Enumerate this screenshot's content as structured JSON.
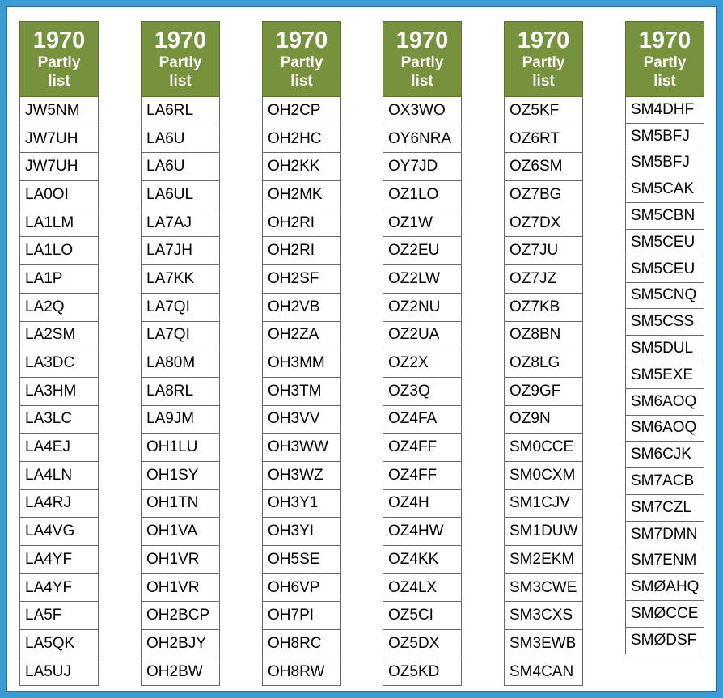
{
  "columns": [
    {
      "year": "1970",
      "sub1": "Partly",
      "sub2": "list",
      "items": [
        "JW5NM",
        "JW7UH",
        "JW7UH",
        "LA0OI",
        "LA1LM",
        "LA1LO",
        "LA1P",
        "LA2Q",
        "LA2SM",
        "LA3DC",
        "LA3HM",
        "LA3LC",
        "LA4EJ",
        "LA4LN",
        "LA4RJ",
        "LA4VG",
        "LA4YF",
        "LA4YF",
        "LA5F",
        "LA5QK",
        "LA5UJ"
      ]
    },
    {
      "year": "1970",
      "sub1": "Partly",
      "sub2": "list",
      "items": [
        "LA6RL",
        "LA6U",
        "LA6U",
        "LA6UL",
        "LA7AJ",
        "LA7JH",
        "LA7KK",
        "LA7QI",
        "LA7QI",
        "LA80M",
        "LA8RL",
        "LA9JM",
        "OH1LU",
        "OH1SY",
        "OH1TN",
        "OH1VA",
        "OH1VR",
        "OH1VR",
        "OH2BCP",
        "OH2BJY",
        "OH2BW"
      ]
    },
    {
      "year": "1970",
      "sub1": "Partly",
      "sub2": "list",
      "items": [
        "OH2CP",
        "OH2HC",
        "OH2KK",
        "OH2MK",
        "OH2RI",
        "OH2RI",
        "OH2SF",
        "OH2VB",
        "OH2ZA",
        "OH3MM",
        "OH3TM",
        "OH3VV",
        "OH3WW",
        "OH3WZ",
        "OH3Y1",
        "OH3YI",
        "OH5SE",
        "OH6VP",
        "OH7PI",
        "OH8RC",
        "OH8RW"
      ]
    },
    {
      "year": "1970",
      "sub1": "Partly",
      "sub2": "list",
      "items": [
        "OX3WO",
        "OY6NRA",
        "OY7JD",
        "OZ1LO",
        "OZ1W",
        "OZ2EU",
        "OZ2LW",
        "OZ2NU",
        "OZ2UA",
        "OZ2X",
        "OZ3Q",
        "OZ4FA",
        "OZ4FF",
        "OZ4FF",
        "OZ4H",
        "OZ4HW",
        "OZ4KK",
        "OZ4LX",
        "OZ5CI",
        "OZ5DX",
        "OZ5KD"
      ]
    },
    {
      "year": "1970",
      "sub1": "Partly",
      "sub2": "list",
      "items": [
        "OZ5KF",
        "OZ6RT",
        "OZ6SM",
        "OZ7BG",
        "OZ7DX",
        "OZ7JU",
        "OZ7JZ",
        "OZ7KB",
        "OZ8BN",
        "OZ8LG",
        "OZ9GF",
        "OZ9N",
        "SM0CCE",
        "SM0CXM",
        "SM1CJV",
        "SM1DUW",
        "SM2EKM",
        "SM3CWE",
        "SM3CXS",
        "SM3EWB",
        "SM4CAN"
      ]
    },
    {
      "year": "1970",
      "sub1": "Partly",
      "sub2": "list",
      "items": [
        "SM4DHF",
        "SM5BFJ",
        "SM5BFJ",
        "SM5CAK",
        "SM5CBN",
        "SM5CEU",
        "SM5CEU",
        "SM5CNQ",
        "SM5CSS",
        "SM5DUL",
        "SM5EXE",
        "SM6AOQ",
        "SM6AOQ",
        "SM6CJK",
        "SM7ACB",
        "SM7CZL",
        "SM7DMN",
        "SM7ENM",
        "SMØAHQ",
        "SMØCCE",
        "SMØDSF"
      ]
    }
  ]
}
